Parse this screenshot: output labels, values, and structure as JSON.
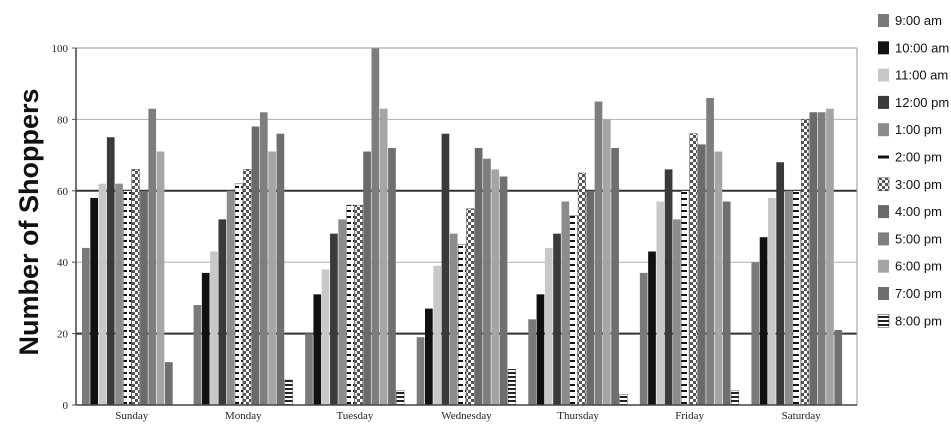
{
  "chart_data": {
    "type": "bar",
    "title": "",
    "xlabel": "",
    "ylabel": "Number of Shoppers",
    "ylim": [
      0,
      100
    ],
    "yticks": [
      0,
      20,
      40,
      60,
      80,
      100
    ],
    "grid": "horizontal",
    "legend_position": "right",
    "categories": [
      "Sunday",
      "Monday",
      "Tuesday",
      "Wednesday",
      "Thursday",
      "Friday",
      "Saturday"
    ],
    "series": [
      {
        "name": "9:00 am",
        "color": "#7a7a7a",
        "pattern": "solid",
        "values": [
          44,
          28,
          20,
          19,
          24,
          37,
          40
        ]
      },
      {
        "name": "10:00 am",
        "color": "#111111",
        "pattern": "solid",
        "values": [
          58,
          37,
          31,
          27,
          31,
          43,
          47
        ]
      },
      {
        "name": "11:00 am",
        "color": "#c8c8c8",
        "pattern": "solid",
        "values": [
          62,
          43,
          38,
          39,
          44,
          57,
          58
        ]
      },
      {
        "name": "12:00 pm",
        "color": "#3a3a3a",
        "pattern": "solid",
        "values": [
          75,
          52,
          48,
          76,
          48,
          66,
          68
        ]
      },
      {
        "name": "1:00 pm",
        "color": "#8c8c8c",
        "pattern": "solid",
        "values": [
          62,
          60,
          52,
          48,
          57,
          52,
          60
        ]
      },
      {
        "name": "2:00 pm",
        "color": "#111111",
        "pattern": "dashes",
        "values": [
          60,
          62,
          56,
          45,
          53,
          60,
          60
        ]
      },
      {
        "name": "3:00 pm",
        "color": "#555555",
        "pattern": "checker",
        "values": [
          66,
          66,
          56,
          55,
          65,
          76,
          80
        ]
      },
      {
        "name": "4:00 pm",
        "color": "#6a6a6a",
        "pattern": "solid",
        "values": [
          60,
          78,
          71,
          72,
          60,
          73,
          82
        ]
      },
      {
        "name": "5:00 pm",
        "color": "#7e7e7e",
        "pattern": "solid",
        "values": [
          83,
          82,
          100,
          69,
          85,
          86,
          82
        ]
      },
      {
        "name": "6:00 pm",
        "color": "#a5a5a5",
        "pattern": "solid",
        "values": [
          71,
          71,
          83,
          66,
          80,
          71,
          83
        ]
      },
      {
        "name": "7:00 pm",
        "color": "#6f6f6f",
        "pattern": "solid",
        "values": [
          12,
          76,
          72,
          64,
          72,
          57,
          21
        ]
      },
      {
        "name": "8:00 pm",
        "color": "#222222",
        "pattern": "stripes",
        "values": [
          0,
          7,
          4,
          10,
          3,
          4,
          0
        ]
      }
    ]
  }
}
